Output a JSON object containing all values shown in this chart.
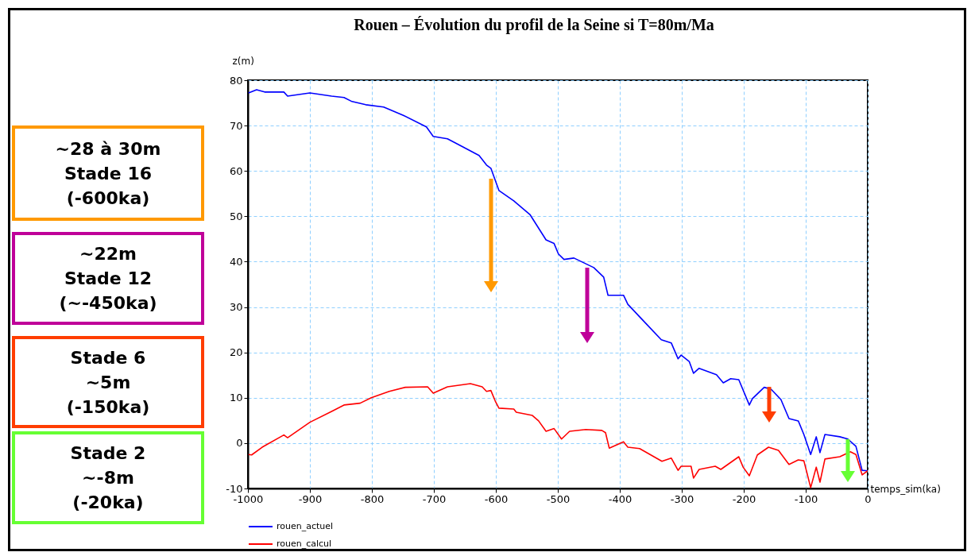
{
  "chart_data": {
    "type": "line",
    "title": "Rouen – Évolution du profil de la Seine si T=80m/Ma",
    "xlabel": "temps_sim(ka)",
    "ylabel": "z(m)",
    "xlim": [
      -1000,
      0
    ],
    "ylim": [
      -10,
      80
    ],
    "xticks": [
      -1000,
      -900,
      -800,
      -700,
      -600,
      -500,
      -400,
      -300,
      -200,
      -100,
      0
    ],
    "yticks": [
      -10,
      0,
      10,
      20,
      30,
      40,
      50,
      60,
      70,
      80
    ],
    "grid": true,
    "legend": "bottom left",
    "series": [
      {
        "name": "rouen_actuel",
        "color": "#0000ff",
        "x": [
          -999,
          -986,
          -973,
          -942,
          -936,
          -900,
          -865,
          -845,
          -832,
          -810,
          -781,
          -750,
          -712,
          -701,
          -678,
          -653,
          -627,
          -615,
          -608,
          -595,
          -571,
          -545,
          -519,
          -506,
          -499,
          -490,
          -474,
          -442,
          -426,
          -419,
          -394,
          -387,
          -358,
          -333,
          -317,
          -306,
          -301,
          -288,
          -281,
          -272,
          -244,
          -233,
          -221,
          -208,
          -191,
          -186,
          -167,
          -156,
          -140,
          -127,
          -112,
          -103,
          -92,
          -83,
          -77,
          -69,
          -45,
          -32,
          -19,
          -9,
          0
        ],
        "values": [
          77.2,
          77.9,
          77.4,
          77.4,
          76.5,
          77.2,
          76.5,
          76.2,
          75.3,
          74.6,
          74.1,
          72.3,
          69.7,
          67.6,
          67.1,
          65.3,
          63.4,
          61.3,
          60.6,
          55.7,
          53.4,
          50.4,
          44.8,
          44,
          41.7,
          40.5,
          40.8,
          38.7,
          36.6,
          32.6,
          32.6,
          30.6,
          26.4,
          22.8,
          22.1,
          18.6,
          19.4,
          18,
          15.4,
          16.5,
          15.1,
          13.3,
          14.2,
          14,
          8.4,
          9.8,
          12.3,
          11.9,
          9.6,
          5.4,
          4.9,
          1.9,
          -2.5,
          1.4,
          -2.1,
          1.9,
          1.4,
          0.9,
          -0.7,
          -6,
          -6.1
        ]
      },
      {
        "name": "rouen_calcul",
        "color": "#ff0000",
        "x": [
          -999,
          -994,
          -977,
          -942,
          -936,
          -900,
          -865,
          -845,
          -819,
          -801,
          -772,
          -746,
          -710,
          -701,
          -678,
          -641,
          -622,
          -615,
          -608,
          -601,
          -595,
          -571,
          -567,
          -541,
          -531,
          -519,
          -506,
          -494,
          -481,
          -455,
          -429,
          -423,
          -417,
          -394,
          -387,
          -368,
          -332,
          -317,
          -306,
          -301,
          -285,
          -281,
          -272,
          -246,
          -237,
          -208,
          -201,
          -191,
          -178,
          -160,
          -144,
          -127,
          -112,
          -103,
          -92,
          -83,
          -77,
          -69,
          -45,
          -28,
          -19,
          -9,
          0
        ],
        "values": [
          -2.5,
          -2.6,
          -0.9,
          1.8,
          1.2,
          4.6,
          7,
          8.4,
          8.8,
          10,
          11.4,
          12.3,
          12.4,
          11,
          12.4,
          13.1,
          12.4,
          11.4,
          11.6,
          9.3,
          7.7,
          7.5,
          6.8,
          6.1,
          4.9,
          2.6,
          3.2,
          0.9,
          2.6,
          3,
          2.8,
          2.3,
          -1.1,
          0.3,
          -0.9,
          -1.2,
          -4,
          -3.3,
          -6,
          -5.1,
          -5.1,
          -7.7,
          -5.8,
          -5.1,
          -5.8,
          -3,
          -5.3,
          -7.2,
          -2.6,
          -0.9,
          -1.6,
          -4.7,
          -3.7,
          -3.9,
          -9.8,
          -5.3,
          -8.6,
          -3.5,
          -3,
          -1.9,
          -2.5,
          -7,
          -6.1
        ]
      }
    ],
    "annotations": [
      "~28 à 30m\nStade 16\n(-600ka)",
      "~22m\nStade 12\n(~-450ka)",
      "Stade 6\n~5m\n(-150ka)",
      "Stade 2\n~-8m\n(-20ka)"
    ]
  }
}
